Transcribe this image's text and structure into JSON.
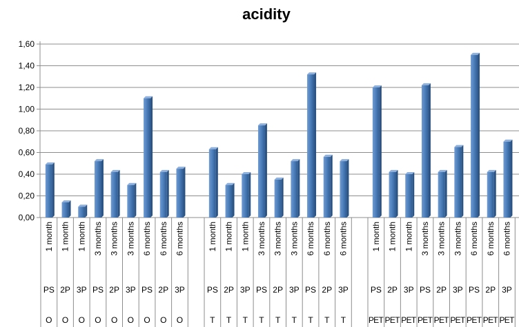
{
  "chart_data": {
    "type": "bar",
    "title": "acidity",
    "xlabel": "",
    "ylabel": "",
    "ylim": [
      0,
      1.6
    ],
    "yticks": [
      "0,00",
      "0,20",
      "0,40",
      "0,60",
      "0,80",
      "1,00",
      "1,20",
      "1,40",
      "1,60"
    ],
    "grid": true,
    "legend": "none",
    "bar_color": "#4F81BD",
    "category_levels": [
      "period",
      "package",
      "group"
    ],
    "categories": [
      {
        "period": "1 month",
        "package": "PS",
        "group": "O"
      },
      {
        "period": "1 month",
        "package": "2P",
        "group": "O"
      },
      {
        "period": "1 month",
        "package": "3P",
        "group": "O"
      },
      {
        "period": "3 months",
        "package": "PS",
        "group": "O"
      },
      {
        "period": "3 months",
        "package": "2P",
        "group": "O"
      },
      {
        "period": "3 months",
        "package": "3P",
        "group": "O"
      },
      {
        "period": "6 months",
        "package": "PS",
        "group": "O"
      },
      {
        "period": "6 months",
        "package": "2P",
        "group": "O"
      },
      {
        "period": "6 months",
        "package": "3P",
        "group": "O"
      },
      {
        "period": "",
        "package": "",
        "group": ""
      },
      {
        "period": "1 month",
        "package": "PS",
        "group": "T"
      },
      {
        "period": "1 month",
        "package": "2P",
        "group": "T"
      },
      {
        "period": "1 month",
        "package": "3P",
        "group": "T"
      },
      {
        "period": "3 months",
        "package": "PS",
        "group": "T"
      },
      {
        "period": "3 months",
        "package": "2P",
        "group": "T"
      },
      {
        "period": "3 months",
        "package": "3P",
        "group": "T"
      },
      {
        "period": "6 months",
        "package": "PS",
        "group": "T"
      },
      {
        "period": "6 months",
        "package": "2P",
        "group": "T"
      },
      {
        "period": "6 months",
        "package": "3P",
        "group": "T"
      },
      {
        "period": "",
        "package": "",
        "group": ""
      },
      {
        "period": "1 month",
        "package": "PS",
        "group": "PET"
      },
      {
        "period": "1 month",
        "package": "2P",
        "group": "PET"
      },
      {
        "period": "1 month",
        "package": "3P",
        "group": "PET"
      },
      {
        "period": "3 months",
        "package": "PS",
        "group": "PET"
      },
      {
        "period": "3 months",
        "package": "2P",
        "group": "PET"
      },
      {
        "period": "3 months",
        "package": "3P",
        "group": "PET"
      },
      {
        "period": "6 months",
        "package": "PS",
        "group": "PET"
      },
      {
        "period": "6 months",
        "package": "2P",
        "group": "PET"
      },
      {
        "period": "6 months",
        "package": "3P",
        "group": "PET"
      }
    ],
    "values": [
      0.49,
      0.14,
      0.1,
      0.52,
      0.42,
      0.3,
      1.1,
      0.42,
      0.45,
      null,
      0.63,
      0.3,
      0.4,
      0.85,
      0.35,
      0.52,
      1.32,
      0.56,
      0.52,
      null,
      1.2,
      0.42,
      0.4,
      1.22,
      0.42,
      0.65,
      1.5,
      0.42,
      0.7
    ]
  }
}
